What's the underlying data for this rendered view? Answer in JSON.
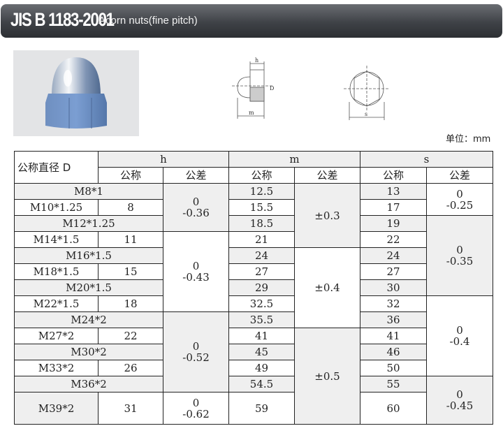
{
  "header": {
    "code": "JIS B 1183-2001",
    "subtitle": "Acorn nuts(fine pitch)"
  },
  "drawings": {
    "label_h": "h",
    "label_d": "D",
    "label_m": "m",
    "label_s": "s"
  },
  "unit": "单位：mm",
  "table": {
    "col_d": "公称直径 D",
    "groups": [
      "h",
      "m",
      "s"
    ],
    "sub_nominal": "公称",
    "sub_tolerance": "公差",
    "rows": [
      {
        "d": "M8*1",
        "h": "",
        "m": "12.5",
        "s": "13"
      },
      {
        "d": "M10*1.25",
        "h": "8",
        "m": "15.5",
        "s": "17"
      },
      {
        "d": "M12*1.25",
        "h": "",
        "m": "18.5",
        "s": "19"
      },
      {
        "d": "M14*1.5",
        "h": "11",
        "m": "21",
        "s": "22"
      },
      {
        "d": "M16*1.5",
        "h": "",
        "m": "24",
        "s": "24"
      },
      {
        "d": "M18*1.5",
        "h": "15",
        "m": "27",
        "s": "27"
      },
      {
        "d": "M20*1.5",
        "h": "",
        "m": "29",
        "s": "30"
      },
      {
        "d": "M22*1.5",
        "h": "18",
        "m": "32.5",
        "s": "32"
      },
      {
        "d": "M24*2",
        "h": "",
        "m": "35.5",
        "s": "36"
      },
      {
        "d": "M27*2",
        "h": "22",
        "m": "41",
        "s": "41"
      },
      {
        "d": "M30*2",
        "h": "",
        "m": "45",
        "s": "46"
      },
      {
        "d": "M33*2",
        "h": "26",
        "m": "49",
        "s": "50"
      },
      {
        "d": "M36*2",
        "h": "",
        "m": "54.5",
        "s": "55"
      },
      {
        "d": "M39*2",
        "h": "31",
        "m": "59",
        "s": "60"
      }
    ],
    "h_tol": [
      {
        "upper": "0",
        "lower": "-0.36",
        "span": 3
      },
      {
        "upper": "0",
        "lower": "-0.43",
        "span": 5
      },
      {
        "upper": "0",
        "lower": "-0.52",
        "span": 5
      },
      {
        "upper": "0",
        "lower": "-0.62",
        "span": 1
      }
    ],
    "m_tol": [
      {
        "value": "±0.3",
        "span": 4
      },
      {
        "value": "±0.4",
        "span": 5
      },
      {
        "value": "±0.5",
        "span": 5
      }
    ],
    "s_tol": [
      {
        "upper": "0",
        "lower": "-0.25",
        "span": 2
      },
      {
        "upper": "0",
        "lower": "-0.35",
        "span": 5
      },
      {
        "upper": "0",
        "lower": "-0.4",
        "span": 5
      },
      {
        "upper": "0",
        "lower": "-0.45",
        "span": 2
      }
    ]
  }
}
